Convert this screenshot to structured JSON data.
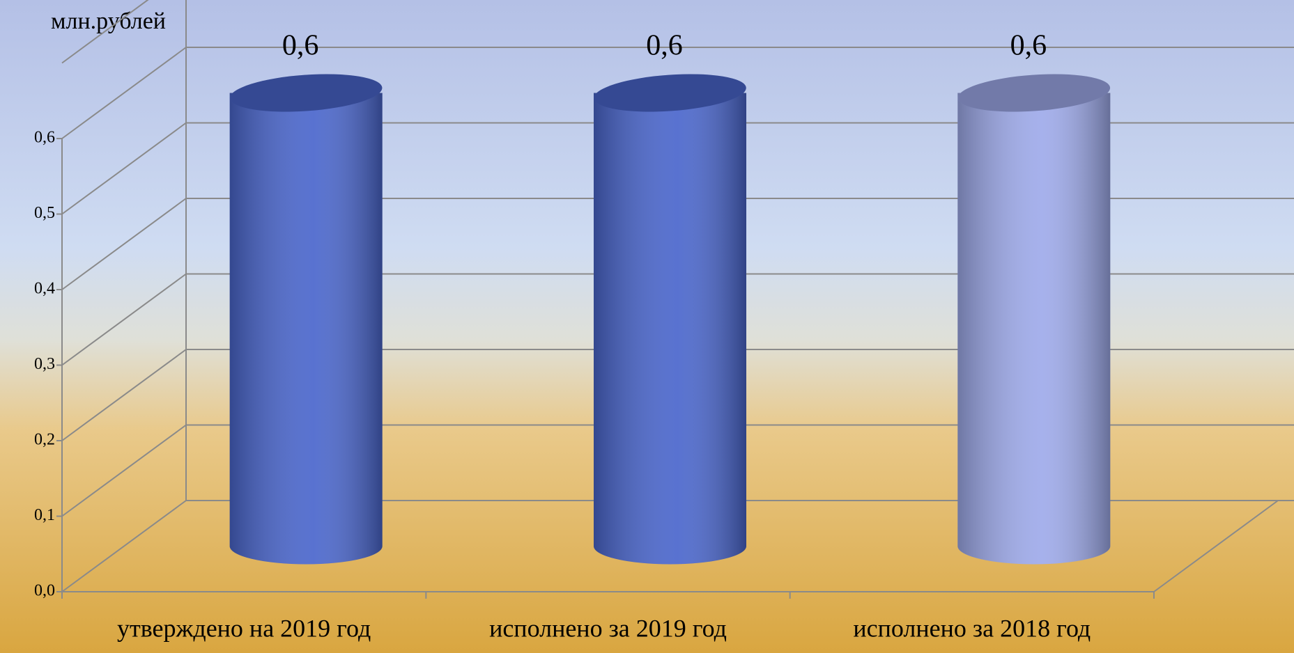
{
  "chart_data": {
    "type": "bar",
    "y_label": "млн.рублей",
    "categories": [
      "утверждено на 2019 год",
      "исполнено за 2019 год",
      "исполнено за 2018 год"
    ],
    "values": [
      0.6,
      0.6,
      0.6
    ],
    "value_labels": [
      "0,6",
      "0,6",
      "0,6"
    ],
    "colors": [
      "#4a66cc",
      "#4a66cc",
      "#9eaaea"
    ],
    "ylim": [
      0,
      0.7
    ],
    "yticks": [
      {
        "value": 0,
        "label": "0,0"
      },
      {
        "value": 0.1,
        "label": "0,1"
      },
      {
        "value": 0.2,
        "label": "0,2"
      },
      {
        "value": 0.3,
        "label": "0,3"
      },
      {
        "value": 0.4,
        "label": "0,4"
      },
      {
        "value": 0.5,
        "label": "0,5"
      },
      {
        "value": 0.6,
        "label": "0,6"
      }
    ],
    "grid": true
  }
}
